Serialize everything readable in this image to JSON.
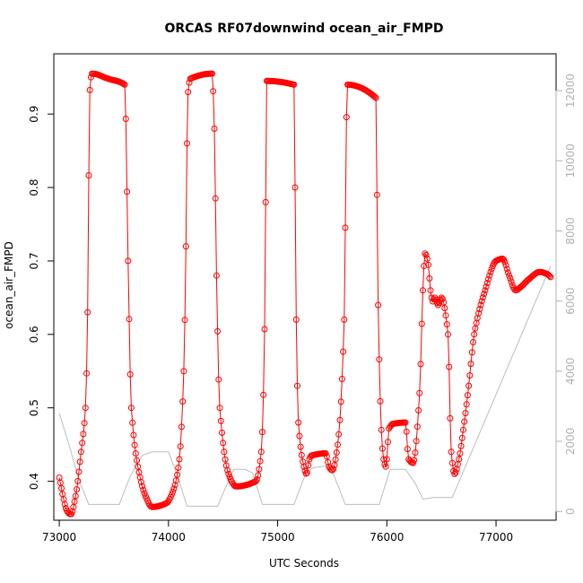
{
  "chart_data": {
    "type": "line",
    "title": "ORCAS RF07downwind ocean_air_FMPD",
    "xlabel": "UTC Seconds",
    "ylabel": "ocean_air_FMPD",
    "xlim": [
      72950,
      77550
    ],
    "ylim": [
      0.347,
      0.982
    ],
    "y2lim": [
      -250,
      13050
    ],
    "x_ticks": [
      73000,
      74000,
      75000,
      76000,
      77000
    ],
    "y_ticks": [
      0.4,
      0.5,
      0.6,
      0.7,
      0.8,
      0.9
    ],
    "y2_ticks": [
      0,
      2000,
      4000,
      6000,
      8000,
      10000,
      12000
    ],
    "grid": false,
    "legend": "none",
    "colors": {
      "primary": "#ff0000",
      "secondary": "#bdbdbd",
      "axis": "#000000",
      "right_axis": "#b0b0b0"
    },
    "series": [
      {
        "color": "#ff0000",
        "marker": "open-circle",
        "axis": "left",
        "x": [
          73000,
          73070,
          73105,
          73150,
          73200,
          73240,
          73262,
          73272,
          73282,
          73300,
          73450,
          73600,
          73630,
          73660,
          73720,
          73790,
          73850,
          73980,
          74050,
          74100,
          74140,
          74160,
          74170,
          74180,
          74200,
          74400,
          74420,
          74440,
          74470,
          74550,
          74620,
          74800,
          74850,
          74875,
          74890,
          74900,
          75150,
          75160,
          75170,
          75190,
          75240,
          75265,
          75290,
          75310,
          75440,
          75470,
          75500,
          75550,
          75610,
          75625,
          75635,
          75900,
          75910,
          75920,
          75950,
          75970,
          75990,
          76000,
          76020,
          76040,
          76050,
          76170,
          76200,
          76240,
          76300,
          76330,
          76350,
          76375,
          76400,
          76420,
          76440,
          76470,
          76500,
          76560,
          76590,
          76620,
          76660,
          76700,
          76750,
          76800,
          76900,
          77000,
          77060,
          77120,
          77180,
          77230,
          77300,
          77400,
          77470,
          77500
        ],
        "y": [
          0.405,
          0.36,
          0.355,
          0.38,
          0.44,
          0.5,
          0.65,
          0.85,
          0.94,
          0.955,
          0.948,
          0.94,
          0.7,
          0.5,
          0.42,
          0.38,
          0.365,
          0.37,
          0.39,
          0.43,
          0.55,
          0.72,
          0.86,
          0.93,
          0.948,
          0.955,
          0.88,
          0.68,
          0.5,
          0.41,
          0.393,
          0.4,
          0.44,
          0.55,
          0.78,
          0.945,
          0.94,
          0.8,
          0.62,
          0.48,
          0.42,
          0.41,
          0.43,
          0.435,
          0.438,
          0.42,
          0.415,
          0.45,
          0.62,
          0.82,
          0.94,
          0.922,
          0.79,
          0.64,
          0.47,
          0.43,
          0.42,
          0.43,
          0.472,
          0.476,
          0.478,
          0.48,
          0.43,
          0.425,
          0.52,
          0.66,
          0.71,
          0.7,
          0.66,
          0.645,
          0.65,
          0.64,
          0.65,
          0.6,
          0.44,
          0.41,
          0.43,
          0.47,
          0.53,
          0.6,
          0.66,
          0.7,
          0.703,
          0.68,
          0.66,
          0.665,
          0.675,
          0.685,
          0.682,
          0.678
        ]
      },
      {
        "color": "#bdbdbd",
        "marker": "none",
        "axis": "right",
        "x": [
          73000,
          73090,
          73180,
          73270,
          73550,
          73650,
          73760,
          73850,
          74000,
          74090,
          74170,
          74450,
          74560,
          74600,
          74700,
          74770,
          74860,
          75150,
          75240,
          75300,
          75330,
          75450,
          75500,
          75620,
          75930,
          76030,
          76170,
          76260,
          76330,
          76430,
          76600,
          77500
        ],
        "y": [
          2800,
          1900,
          900,
          200,
          200,
          1000,
          1600,
          1700,
          1700,
          950,
          150,
          150,
          950,
          1200,
          1200,
          1100,
          200,
          200,
          950,
          1200,
          1250,
          1300,
          1150,
          200,
          200,
          1200,
          1200,
          800,
          350,
          400,
          400,
          7000
        ]
      }
    ]
  }
}
